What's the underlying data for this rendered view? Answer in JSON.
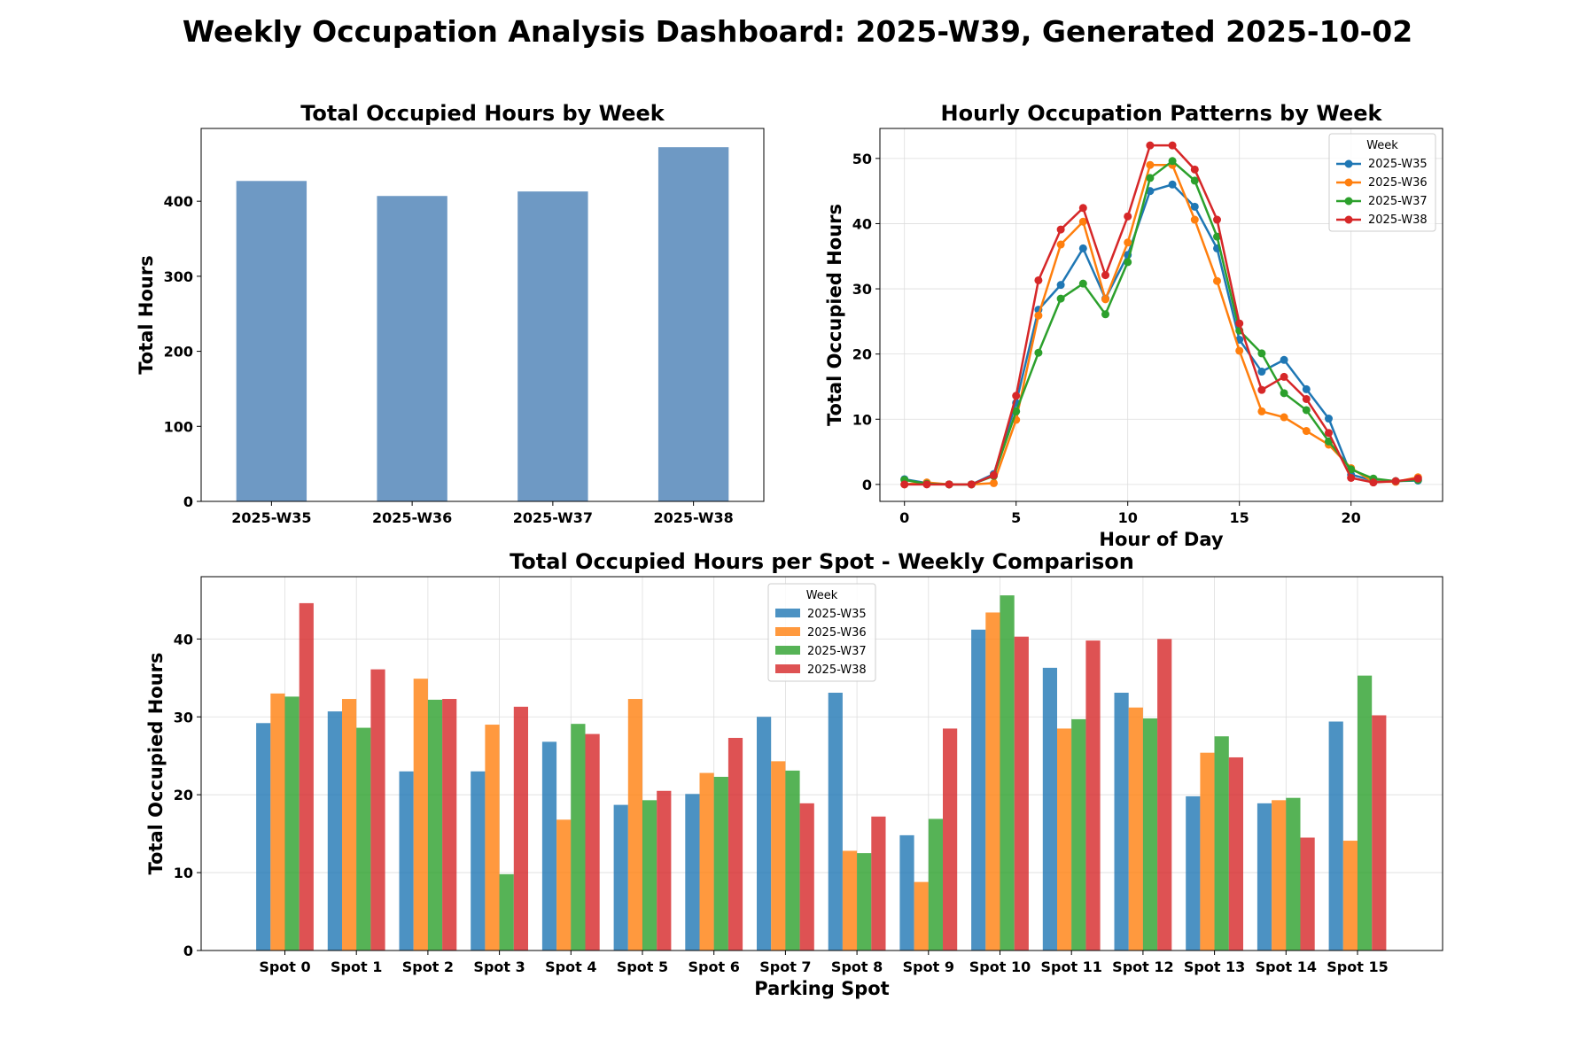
{
  "title": "Weekly Occupation Analysis Dashboard: 2025-W39, Generated 2025-10-02",
  "colors": {
    "bar_single": "#4a7fb5",
    "series": [
      "#1f77b4",
      "#ff7f0e",
      "#2ca02c",
      "#d62728"
    ],
    "grid": "#dddddd"
  },
  "chart_data": [
    {
      "type": "bar",
      "title": "Total Occupied Hours by Week",
      "xlabel": "",
      "ylabel": "Total Hours",
      "categories": [
        "2025-W35",
        "2025-W36",
        "2025-W37",
        "2025-W38"
      ],
      "values": [
        427,
        407,
        413,
        472
      ],
      "ylim": [
        0,
        497
      ],
      "yticks": [
        0,
        100,
        200,
        300,
        400
      ],
      "grid": false
    },
    {
      "type": "line",
      "title": "Hourly Occupation Patterns by Week",
      "xlabel": "Hour of Day",
      "ylabel": "Total Occupied Hours",
      "x": [
        0,
        1,
        2,
        3,
        4,
        5,
        6,
        7,
        8,
        9,
        10,
        11,
        12,
        13,
        14,
        15,
        16,
        17,
        18,
        19,
        20,
        21,
        22,
        23
      ],
      "xlim": [
        -1.1,
        24.1
      ],
      "ylim": [
        -2.6,
        54.6
      ],
      "xticks": [
        0,
        5,
        10,
        15,
        20
      ],
      "yticks": [
        0,
        10,
        20,
        30,
        40,
        50
      ],
      "grid": true,
      "legend_title": "Week",
      "legend_position": "top-right",
      "series": [
        {
          "name": "2025-W35",
          "values": [
            0.8,
            0.2,
            0,
            0,
            1.6,
            12.5,
            26.8,
            30.6,
            36.2,
            28.5,
            35.2,
            45,
            46,
            42.6,
            36.2,
            22.2,
            17.3,
            19.1,
            14.6,
            10.1,
            1.5,
            0.6,
            0.5,
            0.6
          ]
        },
        {
          "name": "2025-W36",
          "values": [
            0,
            0.3,
            0,
            0,
            0.2,
            9.9,
            25.9,
            36.8,
            40.3,
            28.4,
            37.1,
            49,
            49,
            40.6,
            31.2,
            20.5,
            11.2,
            10.3,
            8.2,
            6.1,
            2.5,
            0.4,
            0.4,
            1.1
          ]
        },
        {
          "name": "2025-W37",
          "values": [
            0.7,
            0.1,
            0,
            0,
            1.3,
            11.2,
            20.2,
            28.5,
            30.8,
            26.1,
            34.1,
            47,
            49.6,
            46.6,
            38,
            23.6,
            20.1,
            14,
            11.4,
            6.6,
            2.3,
            0.9,
            0.5,
            0.7
          ]
        },
        {
          "name": "2025-W38",
          "values": [
            0,
            0,
            0,
            0,
            1.4,
            13.6,
            31.3,
            39.1,
            42.4,
            32.1,
            41.1,
            52,
            52,
            48.3,
            40.6,
            24.7,
            14.5,
            16.5,
            13.1,
            7.9,
            1,
            0.3,
            0.5,
            0.9
          ]
        }
      ]
    },
    {
      "type": "bar",
      "title": "Total Occupied Hours per Spot - Weekly Comparison",
      "xlabel": "Parking Spot",
      "ylabel": "Total Occupied Hours",
      "categories": [
        "Spot 0",
        "Spot 1",
        "Spot 2",
        "Spot 3",
        "Spot 4",
        "Spot 5",
        "Spot 6",
        "Spot 7",
        "Spot 8",
        "Spot 9",
        "Spot 10",
        "Spot 11",
        "Spot 12",
        "Spot 13",
        "Spot 14",
        "Spot 15"
      ],
      "ylim": [
        0,
        48
      ],
      "yticks": [
        0,
        10,
        20,
        30,
        40
      ],
      "grid": true,
      "legend_title": "Week",
      "legend_position": "top-center",
      "series": [
        {
          "name": "2025-W35",
          "values": [
            29.2,
            30.7,
            23,
            23,
            26.8,
            18.7,
            20.1,
            30,
            33.1,
            14.8,
            41.2,
            36.3,
            33.1,
            19.8,
            18.9,
            29.4
          ]
        },
        {
          "name": "2025-W36",
          "values": [
            33,
            32.3,
            34.9,
            29,
            16.8,
            32.3,
            22.8,
            24.3,
            12.8,
            8.8,
            43.4,
            28.5,
            31.2,
            25.4,
            19.3,
            14.1
          ]
        },
        {
          "name": "2025-W37",
          "values": [
            32.6,
            28.6,
            32.2,
            9.8,
            29.1,
            19.3,
            22.3,
            23.1,
            12.5,
            16.9,
            45.6,
            29.7,
            29.8,
            27.5,
            19.6,
            35.3
          ]
        },
        {
          "name": "2025-W38",
          "values": [
            44.6,
            36.1,
            32.3,
            31.3,
            27.8,
            20.5,
            27.3,
            18.9,
            17.2,
            28.5,
            40.3,
            39.8,
            40,
            24.8,
            14.5,
            30.2
          ]
        }
      ]
    }
  ]
}
